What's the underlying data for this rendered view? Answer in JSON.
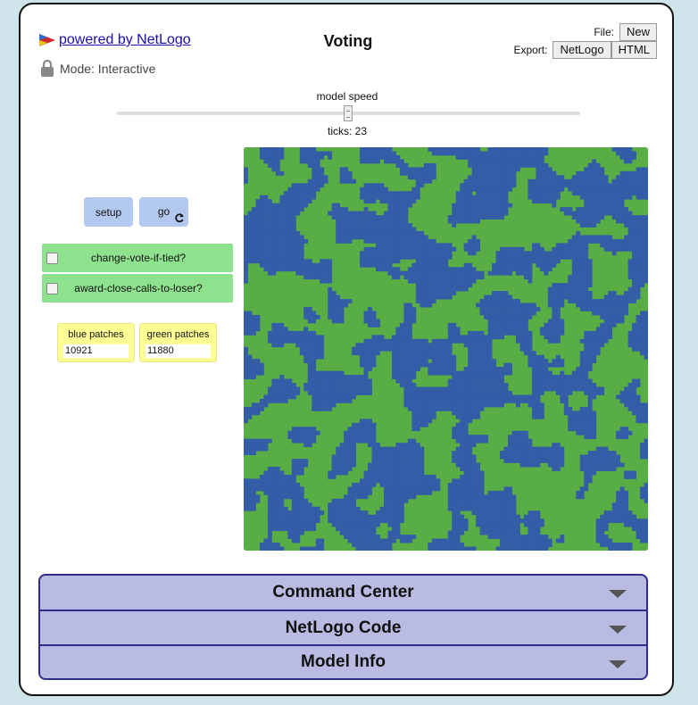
{
  "header": {
    "logo_text": "powered by NetLogo",
    "mode_text": "Mode: Interactive",
    "title": "Voting",
    "file_label": "File:",
    "file_new": "New",
    "export_label": "Export:",
    "export_netlogo": "NetLogo",
    "export_html": "HTML"
  },
  "speed": {
    "label": "model speed",
    "ticks_text": "ticks: 23",
    "value": 0.5
  },
  "controls": {
    "setup_label": "setup",
    "go_label": "go",
    "switch1_label": "change-vote-if-tied?",
    "switch2_label": "award-close-calls-to-loser?",
    "switch1_on": false,
    "switch2_on": false
  },
  "monitors": {
    "blue_label": "blue patches",
    "blue_value": "10921",
    "green_label": "green patches",
    "green_value": "11880"
  },
  "world": {
    "blue_color": "#345da7",
    "green_color": "#59ad45"
  },
  "panels": {
    "command_center": "Command Center",
    "netlogo_code": "NetLogo Code",
    "model_info": "Model Info"
  }
}
